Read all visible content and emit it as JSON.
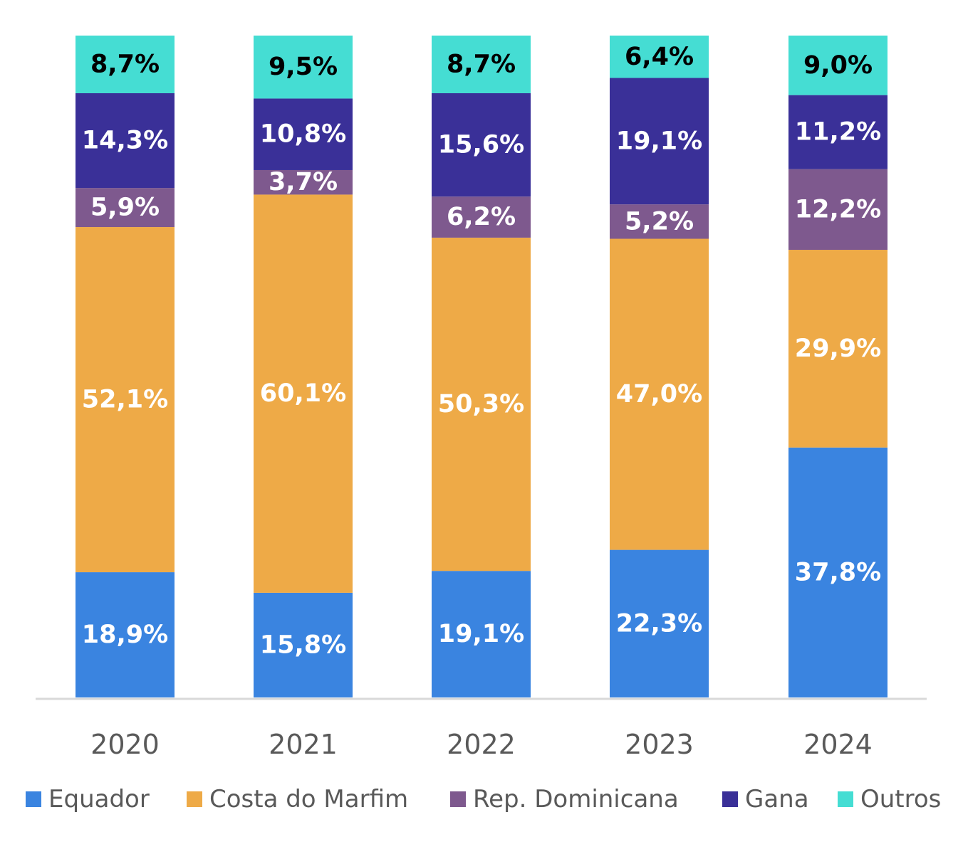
{
  "chart_data": {
    "type": "bar",
    "stacked": true,
    "normalized": true,
    "title": "",
    "xlabel": "",
    "ylabel": "",
    "categories": [
      "2020",
      "2021",
      "2022",
      "2023",
      "2024"
    ],
    "series": [
      {
        "name": "Equador",
        "color": "#3A84E0",
        "label_color": "#FFFFFF",
        "values": [
          18.9,
          15.8,
          19.1,
          22.3,
          37.8
        ],
        "labels": [
          "18,9%",
          "15,8%",
          "19,1%",
          "22,3%",
          "37,8%"
        ]
      },
      {
        "name": "Costa do Marfim",
        "color": "#EEAA47",
        "label_color": "#FFFFFF",
        "values": [
          52.1,
          60.1,
          50.3,
          47.0,
          29.9
        ],
        "labels": [
          "52,1%",
          "60,1%",
          "50,3%",
          "47,0%",
          "29,9%"
        ]
      },
      {
        "name": "Rep. Dominicana",
        "color": "#7E598E",
        "label_color": "#FFFFFF",
        "values": [
          5.9,
          3.7,
          6.2,
          5.2,
          12.2
        ],
        "labels": [
          "5,9%",
          "3,7%",
          "6,2%",
          "5,2%",
          "12,2%"
        ]
      },
      {
        "name": "Gana",
        "color": "#3A3098",
        "label_color": "#FFFFFF",
        "values": [
          14.3,
          10.8,
          15.6,
          19.1,
          11.2
        ],
        "labels": [
          "14,3%",
          "10,8%",
          "15,6%",
          "19,1%",
          "11,2%"
        ]
      },
      {
        "name": "Outros",
        "color": "#45DDD3",
        "label_color": "#000000",
        "values": [
          8.7,
          9.5,
          8.7,
          6.4,
          9.0
        ],
        "labels": [
          "8,7%",
          "9,5%",
          "8,7%",
          "6,4%",
          "9,0%"
        ]
      }
    ],
    "ylim": [
      0,
      100
    ],
    "grid": false,
    "legend_position": "bottom"
  }
}
